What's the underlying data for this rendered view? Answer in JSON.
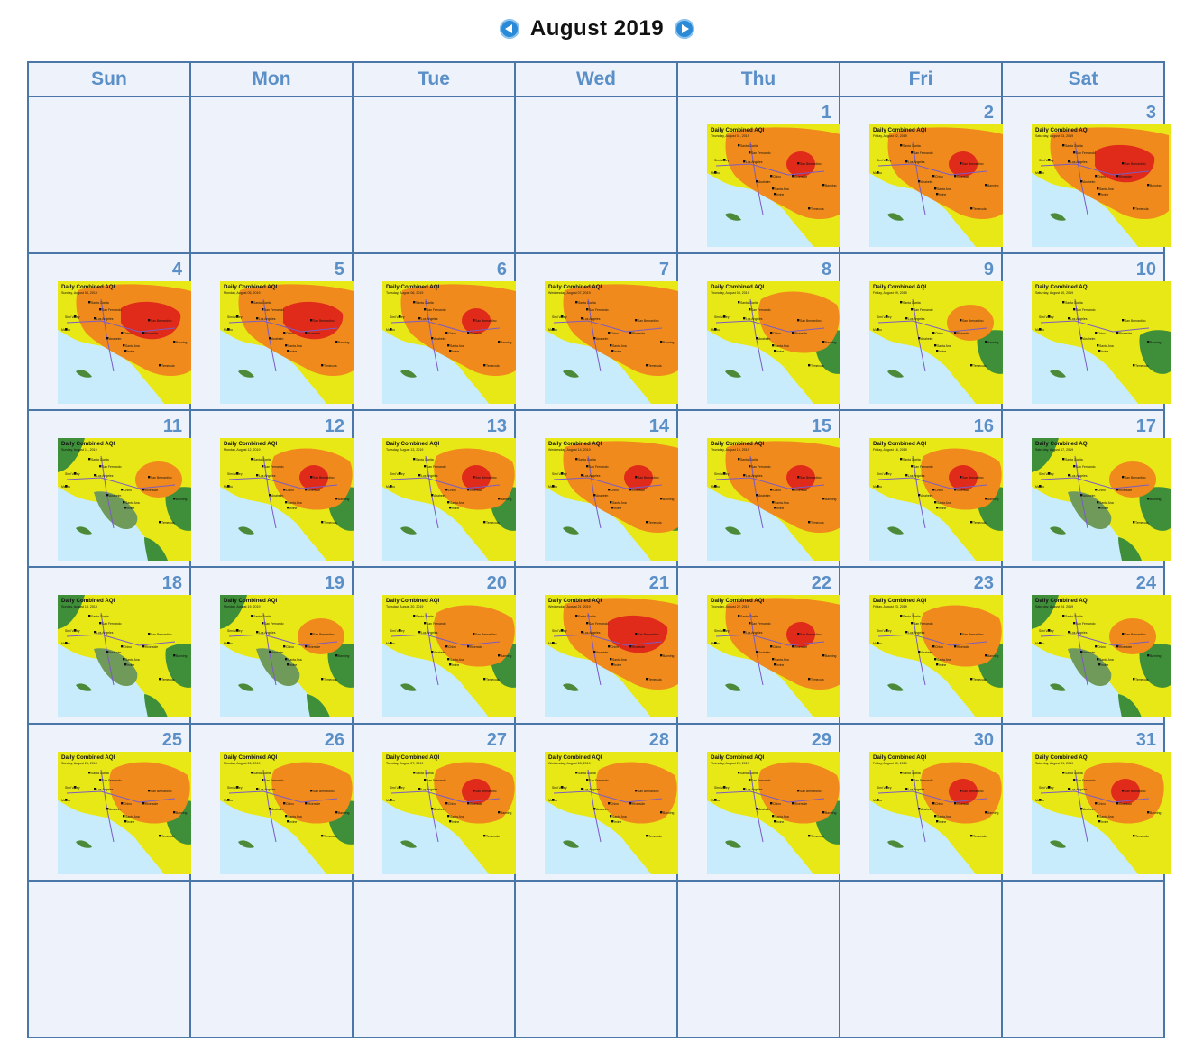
{
  "calendar": {
    "title": "August 2019",
    "weekdays": [
      "Sun",
      "Mon",
      "Tue",
      "Wed",
      "Thu",
      "Fri",
      "Sat"
    ],
    "first_weekday_index": 4,
    "days_in_month": 31,
    "rows": 6,
    "thumbnail_title": "Daily Combined AQI",
    "map_labels": [
      "Santa Clarita",
      "San Fernando",
      "Simi Valley",
      "Los Angeles",
      "San Bernardino",
      "Malibu",
      "Chino",
      "Riverside",
      "Anaheim",
      "Banning",
      "Santa Ana",
      "Irvine",
      "Temecula"
    ],
    "colors": {
      "ocean": "#c8ecfb",
      "good": "#3f8f3a",
      "moderate": "#e8e817",
      "usg": "#f08a1c",
      "unhealthy": "#e02a1a",
      "accent": "#4a76a8"
    }
  },
  "days": [
    {
      "day": 1,
      "caption": "Thursday, August 01, 2019",
      "orange": 3,
      "red": 1,
      "green": 0
    },
    {
      "day": 2,
      "caption": "Friday, August 02, 2019",
      "orange": 3,
      "red": 1,
      "green": 0
    },
    {
      "day": 3,
      "caption": "Saturday, August 03, 2019",
      "orange": 3,
      "red": 2,
      "green": 0
    },
    {
      "day": 4,
      "caption": "Sunday, August 04, 2019",
      "orange": 3,
      "red": 2,
      "green": 0
    },
    {
      "day": 5,
      "caption": "Monday, August 05, 2019",
      "orange": 3,
      "red": 2,
      "green": 0
    },
    {
      "day": 6,
      "caption": "Tuesday, August 06, 2019",
      "orange": 3,
      "red": 1,
      "green": 0
    },
    {
      "day": 7,
      "caption": "Wednesday, August 07, 2019",
      "orange": 3,
      "red": 0,
      "green": 0
    },
    {
      "day": 8,
      "caption": "Thursday, August 08, 2019",
      "orange": 2,
      "red": 0,
      "green": 1
    },
    {
      "day": 9,
      "caption": "Friday, August 09, 2019",
      "orange": 1,
      "red": 0,
      "green": 1
    },
    {
      "day": 10,
      "caption": "Saturday, August 10, 2019",
      "orange": 0,
      "red": 0,
      "green": 1
    },
    {
      "day": 11,
      "caption": "Sunday, August 11, 2019",
      "orange": 1,
      "red": 0,
      "green": 2
    },
    {
      "day": 12,
      "caption": "Monday, August 12, 2019",
      "orange": 2,
      "red": 1,
      "green": 1
    },
    {
      "day": 13,
      "caption": "Tuesday, August 13, 2019",
      "orange": 2,
      "red": 1,
      "green": 1
    },
    {
      "day": 14,
      "caption": "Wednesday, August 14, 2019",
      "orange": 3,
      "red": 1,
      "green": 1
    },
    {
      "day": 15,
      "caption": "Thursday, August 15, 2019",
      "orange": 3,
      "red": 1,
      "green": 0
    },
    {
      "day": 16,
      "caption": "Friday, August 16, 2019",
      "orange": 2,
      "red": 1,
      "green": 1
    },
    {
      "day": 17,
      "caption": "Saturday, August 17, 2019",
      "orange": 1,
      "red": 0,
      "green": 2
    },
    {
      "day": 18,
      "caption": "Sunday, August 18, 2019",
      "orange": 0,
      "red": 0,
      "green": 2
    },
    {
      "day": 19,
      "caption": "Monday, August 19, 2019",
      "orange": 1,
      "red": 0,
      "green": 2
    },
    {
      "day": 20,
      "caption": "Tuesday, August 20, 2019",
      "orange": 2,
      "red": 0,
      "green": 1
    },
    {
      "day": 21,
      "caption": "Wednesday, August 21, 2019",
      "orange": 3,
      "red": 2,
      "green": 0
    },
    {
      "day": 22,
      "caption": "Thursday, August 22, 2019",
      "orange": 3,
      "red": 1,
      "green": 0
    },
    {
      "day": 23,
      "caption": "Friday, August 23, 2019",
      "orange": 2,
      "red": 0,
      "green": 1
    },
    {
      "day": 24,
      "caption": "Saturday, August 24, 2019",
      "orange": 1,
      "red": 0,
      "green": 2
    },
    {
      "day": 25,
      "caption": "Sunday, August 25, 2019",
      "orange": 2,
      "red": 0,
      "green": 1
    },
    {
      "day": 26,
      "caption": "Monday, August 26, 2019",
      "orange": 2,
      "red": 0,
      "green": 1
    },
    {
      "day": 27,
      "caption": "Tuesday, August 27, 2019",
      "orange": 2,
      "red": 1,
      "green": 0
    },
    {
      "day": 28,
      "caption": "Wednesday, August 28, 2019",
      "orange": 2,
      "red": 0,
      "green": 0
    },
    {
      "day": 29,
      "caption": "Thursday, August 29, 2019",
      "orange": 2,
      "red": 0,
      "green": 1
    },
    {
      "day": 30,
      "caption": "Friday, August 30, 2019",
      "orange": 2,
      "red": 1,
      "green": 0
    },
    {
      "day": 31,
      "caption": "Saturday, August 31, 2019",
      "orange": 2,
      "red": 1,
      "green": 0
    }
  ]
}
